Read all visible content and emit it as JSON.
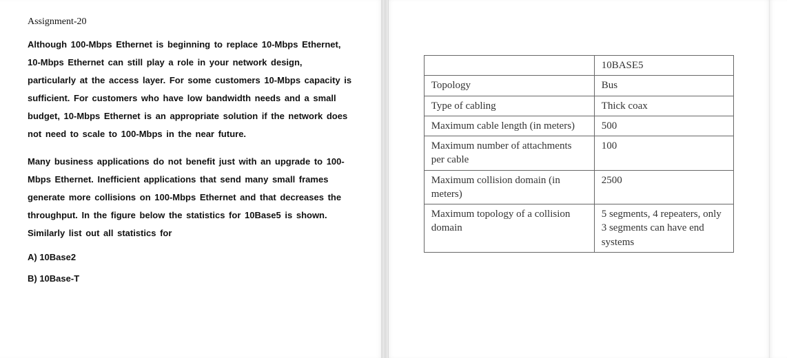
{
  "left": {
    "title": "Assignment-20",
    "paragraph1": "Although 100-Mbps Ethernet is beginning to replace 10-Mbps Ethernet, 10-Mbps Ethernet can still play a role in your network design, particularly at the access layer. For some customers 10-Mbps capacity is sufficient. For customers who have low bandwidth needs and a small budget, 10-Mbps Ethernet is an appropriate solution if the network does not need to scale to 100-Mbps in the near future.",
    "paragraph2": "Many business applications do not benefit just with an upgrade to 100-Mbps Ethernet. Inefficient applications that send many small frames generate more collisions on 100-Mbps Ethernet and that decreases the throughput. In the figure below the statistics for 10Base5 is shown. Similarly list out all statistics for",
    "optionA": "A) 10Base2",
    "optionB": "B) 10Base-T"
  },
  "table": {
    "header_value": "10BASE5",
    "rows": [
      {
        "label": "Topology",
        "value": "Bus"
      },
      {
        "label": "Type of cabling",
        "value": "Thick coax"
      },
      {
        "label": "Maximum cable length (in meters)",
        "value": "500"
      },
      {
        "label": "Maximum number of attachments per cable",
        "value": "100"
      },
      {
        "label": "Maximum collision domain (in meters)",
        "value": "2500"
      },
      {
        "label": "Maximum topology of a collision domain",
        "value": "5 segments, 4 repeaters, only 3 segments can have end systems"
      }
    ]
  },
  "style": {
    "page_bg": "#ffffff",
    "text_color": "#111111",
    "table_border": "#666666",
    "table_font": "Georgia",
    "body_font": "Arial",
    "title_fontsize_pt": 11,
    "body_fontsize_pt": 10,
    "table_fontsize_pt": 11
  }
}
